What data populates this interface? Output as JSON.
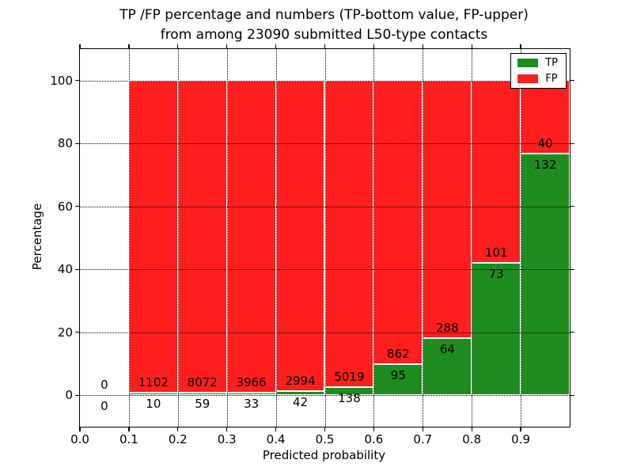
{
  "title": {
    "line1": "TP /FP percentage and numbers (TP-bottom value, FP-upper)",
    "line2": "from among 23090 submitted L50-type contacts"
  },
  "axes": {
    "xlabel": "Predicted probability",
    "ylabel": "Percentage",
    "x_tick_values": [
      0.0,
      0.1,
      0.2,
      0.3,
      0.4,
      0.5,
      0.6,
      0.7,
      0.8,
      0.9
    ],
    "x_tick_labels": [
      "0.0",
      "0.1",
      "0.2",
      "0.3",
      "0.4",
      "0.5",
      "0.6",
      "0.7",
      "0.8",
      "0.9"
    ],
    "y_tick_values": [
      0,
      20,
      40,
      60,
      80,
      100
    ],
    "y_tick_labels": [
      "0",
      "20",
      "40",
      "60",
      "80",
      "100"
    ],
    "grid_style": "dotted"
  },
  "legend": {
    "position": "upper right",
    "items": [
      {
        "label": "TP",
        "color": "#1e8c1e"
      },
      {
        "label": "FP",
        "color": "#ff1e1e"
      }
    ]
  },
  "colors": {
    "tp": "#1e8c1e",
    "fp": "#ff1e1e",
    "frame": "#000000",
    "background": "#ffffff"
  },
  "chart_data": {
    "type": "bar",
    "stacked": true,
    "normalized_to_percent": true,
    "title": "TP /FP percentage and numbers (TP-bottom value, FP-upper) from among 23090 submitted L50-type contacts",
    "xlabel": "Predicted probability",
    "ylabel": "Percentage",
    "xlim": [
      0.0,
      1.0
    ],
    "ylim": [
      -10,
      110
    ],
    "grid": true,
    "legend_position": "upper right",
    "total_contacts": 23090,
    "y_gridlines": [
      0,
      20,
      40,
      60,
      80,
      100
    ],
    "x_gridlines": [
      0.1,
      0.2,
      0.3,
      0.4,
      0.5,
      0.6,
      0.7,
      0.8,
      0.9
    ],
    "series_note": "Each bin bar totals 100%; green TP segment bottom, red FP segment top; labels show raw counts (FP above TP/FP boundary, TP below)",
    "bins": [
      {
        "x_start": 0.0,
        "x_end": 0.1,
        "tp": 0,
        "fp": 0,
        "tp_percent": 0.0,
        "fp_percent": 0.0
      },
      {
        "x_start": 0.1,
        "x_end": 0.2,
        "tp": 10,
        "fp": 1102,
        "tp_percent": 0.9,
        "fp_percent": 99.1
      },
      {
        "x_start": 0.2,
        "x_end": 0.3,
        "tp": 59,
        "fp": 8072,
        "tp_percent": 0.73,
        "fp_percent": 99.27
      },
      {
        "x_start": 0.3,
        "x_end": 0.4,
        "tp": 33,
        "fp": 3966,
        "tp_percent": 0.83,
        "fp_percent": 99.17
      },
      {
        "x_start": 0.4,
        "x_end": 0.5,
        "tp": 42,
        "fp": 2994,
        "tp_percent": 1.38,
        "fp_percent": 98.62
      },
      {
        "x_start": 0.5,
        "x_end": 0.6,
        "tp": 138,
        "fp": 5019,
        "tp_percent": 2.68,
        "fp_percent": 97.32
      },
      {
        "x_start": 0.6,
        "x_end": 0.7,
        "tp": 95,
        "fp": 862,
        "tp_percent": 9.93,
        "fp_percent": 90.07
      },
      {
        "x_start": 0.7,
        "x_end": 0.8,
        "tp": 64,
        "fp": 288,
        "tp_percent": 18.18,
        "fp_percent": 81.82
      },
      {
        "x_start": 0.8,
        "x_end": 0.9,
        "tp": 73,
        "fp": 101,
        "tp_percent": 41.95,
        "fp_percent": 58.05
      },
      {
        "x_start": 0.9,
        "x_end": 1.0,
        "tp": 132,
        "fp": 40,
        "tp_percent": 76.74,
        "fp_percent": 23.26
      }
    ]
  }
}
